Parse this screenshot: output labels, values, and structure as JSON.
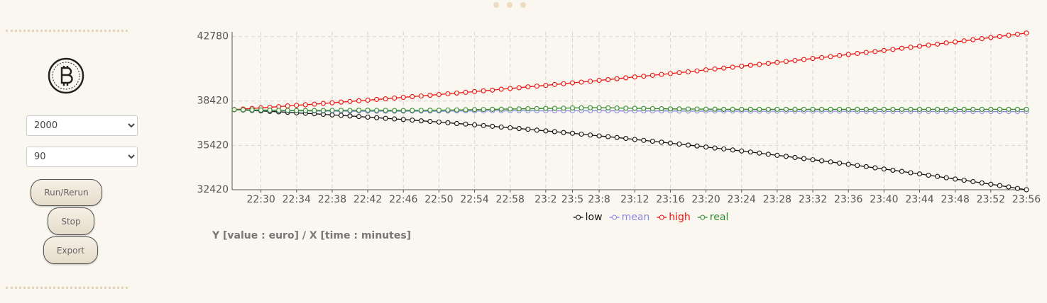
{
  "sidebar": {
    "selects": [
      "2000",
      "90"
    ],
    "buttons": [
      "Run/Rerun",
      "Stop",
      "Export"
    ]
  },
  "caption": "Y [value : euro] / X [time : minutes]",
  "chart_data": {
    "type": "line",
    "categories": [
      null,
      null,
      null,
      "22:30",
      null,
      null,
      null,
      "22:34",
      null,
      null,
      null,
      "22:38",
      null,
      null,
      null,
      "22:42",
      null,
      null,
      null,
      "22:46",
      null,
      null,
      null,
      "22:50",
      null,
      null,
      null,
      "22:54",
      null,
      null,
      null,
      "22:58",
      null,
      null,
      null,
      "23:2",
      null,
      null,
      "23:5",
      null,
      null,
      "23:8",
      null,
      null,
      null,
      "23:12",
      null,
      null,
      null,
      "23:16",
      null,
      null,
      null,
      "23:20",
      null,
      null,
      null,
      "23:24",
      null,
      null,
      null,
      "23:28",
      null,
      null,
      null,
      "23:32",
      null,
      null,
      null,
      "23:36",
      null,
      null,
      null,
      "23:40",
      null,
      null,
      null,
      "23:44",
      null,
      null,
      null,
      "23:48",
      null,
      null,
      null,
      "23:52",
      null,
      null,
      null,
      "23:56"
    ],
    "ylim": [
      32420,
      43100
    ],
    "yticks": [
      32420,
      35420,
      38420,
      42780
    ],
    "grid": true,
    "series": [
      {
        "name": "low",
        "color": "#111111",
        "values": [
          37840,
          37810,
          37780,
          37750,
          37720,
          37690,
          37660,
          37620,
          37590,
          37560,
          37520,
          37480,
          37450,
          37410,
          37370,
          37330,
          37290,
          37250,
          37210,
          37170,
          37130,
          37080,
          37040,
          37000,
          36950,
          36900,
          36860,
          36810,
          36760,
          36710,
          36660,
          36610,
          36560,
          36510,
          36450,
          36400,
          36350,
          36290,
          36240,
          36180,
          36120,
          36060,
          36010,
          35950,
          35890,
          35820,
          35760,
          35700,
          35640,
          35570,
          35510,
          35440,
          35380,
          35310,
          35240,
          35180,
          35110,
          35040,
          34970,
          34900,
          34820,
          34750,
          34680,
          34600,
          34530,
          34450,
          34380,
          34300,
          34220,
          34140,
          34060,
          33980,
          33900,
          33820,
          33740,
          33660,
          33570,
          33490,
          33400,
          33320,
          33230,
          33140,
          33060,
          32970,
          32880,
          32790,
          32700,
          32610,
          32510,
          32420
        ]
      },
      {
        "name": "mean",
        "color": "#8888dd",
        "values": [
          37840,
          37820,
          37800,
          37790,
          37780,
          37770,
          37760,
          37760,
          37750,
          37750,
          37740,
          37740,
          37740,
          37730,
          37730,
          37730,
          37730,
          37730,
          37730,
          37730,
          37740,
          37740,
          37740,
          37740,
          37740,
          37750,
          37750,
          37750,
          37750,
          37760,
          37760,
          37760,
          37760,
          37760,
          37760,
          37760,
          37760,
          37760,
          37760,
          37760,
          37760,
          37760,
          37760,
          37750,
          37750,
          37750,
          37750,
          37750,
          37750,
          37750,
          37740,
          37740,
          37740,
          37740,
          37740,
          37740,
          37740,
          37740,
          37730,
          37730,
          37730,
          37730,
          37730,
          37730,
          37730,
          37730,
          37730,
          37730,
          37730,
          37730,
          37720,
          37720,
          37720,
          37720,
          37720,
          37720,
          37720,
          37720,
          37720,
          37720,
          37720,
          37720,
          37720,
          37710,
          37710,
          37710,
          37710,
          37710,
          37710,
          37710
        ]
      },
      {
        "name": "high",
        "color": "#ee1111",
        "values": [
          37840,
          37880,
          37920,
          37960,
          38000,
          38040,
          38090,
          38130,
          38170,
          38210,
          38260,
          38300,
          38350,
          38390,
          38440,
          38480,
          38530,
          38570,
          38620,
          38670,
          38720,
          38760,
          38810,
          38860,
          38910,
          38960,
          39010,
          39060,
          39110,
          39160,
          39220,
          39270,
          39320,
          39380,
          39430,
          39480,
          39540,
          39590,
          39650,
          39700,
          39760,
          39820,
          39870,
          39930,
          39990,
          40050,
          40100,
          40160,
          40220,
          40280,
          40340,
          40400,
          40460,
          40530,
          40590,
          40650,
          40710,
          40780,
          40840,
          40900,
          40970,
          41030,
          41100,
          41160,
          41230,
          41300,
          41360,
          41430,
          41500,
          41570,
          41640,
          41710,
          41770,
          41840,
          41910,
          41990,
          42060,
          42130,
          42200,
          42270,
          42350,
          42420,
          42490,
          42570,
          42640,
          42720,
          42790,
          42870,
          42940,
          43020
        ]
      },
      {
        "name": "real",
        "color": "#2e8b2e",
        "values": [
          37840,
          37830,
          37820,
          37810,
          37800,
          37790,
          37790,
          37780,
          37780,
          37780,
          37780,
          37790,
          37790,
          37790,
          37800,
          37800,
          37790,
          37790,
          37780,
          37780,
          37790,
          37790,
          37800,
          37800,
          37810,
          37820,
          37830,
          37840,
          37850,
          37860,
          37870,
          37880,
          37890,
          37900,
          37910,
          37920,
          37930,
          37940,
          37950,
          37960,
          37970,
          37970,
          37960,
          37950,
          37940,
          37930,
          37920,
          37910,
          37900,
          37890,
          37890,
          37880,
          37880,
          37870,
          37870,
          37860,
          37860,
          37860,
          37860,
          37860,
          37860,
          37860,
          37860,
          37860,
          37860,
          37860,
          37860,
          37860,
          37860,
          37860,
          37860,
          37860,
          37860,
          37860,
          37860,
          37860,
          37860,
          37860,
          37860,
          37860,
          37860,
          37860,
          37860,
          37860,
          37860,
          37860,
          37860,
          37860,
          37860,
          37860
        ]
      }
    ]
  }
}
